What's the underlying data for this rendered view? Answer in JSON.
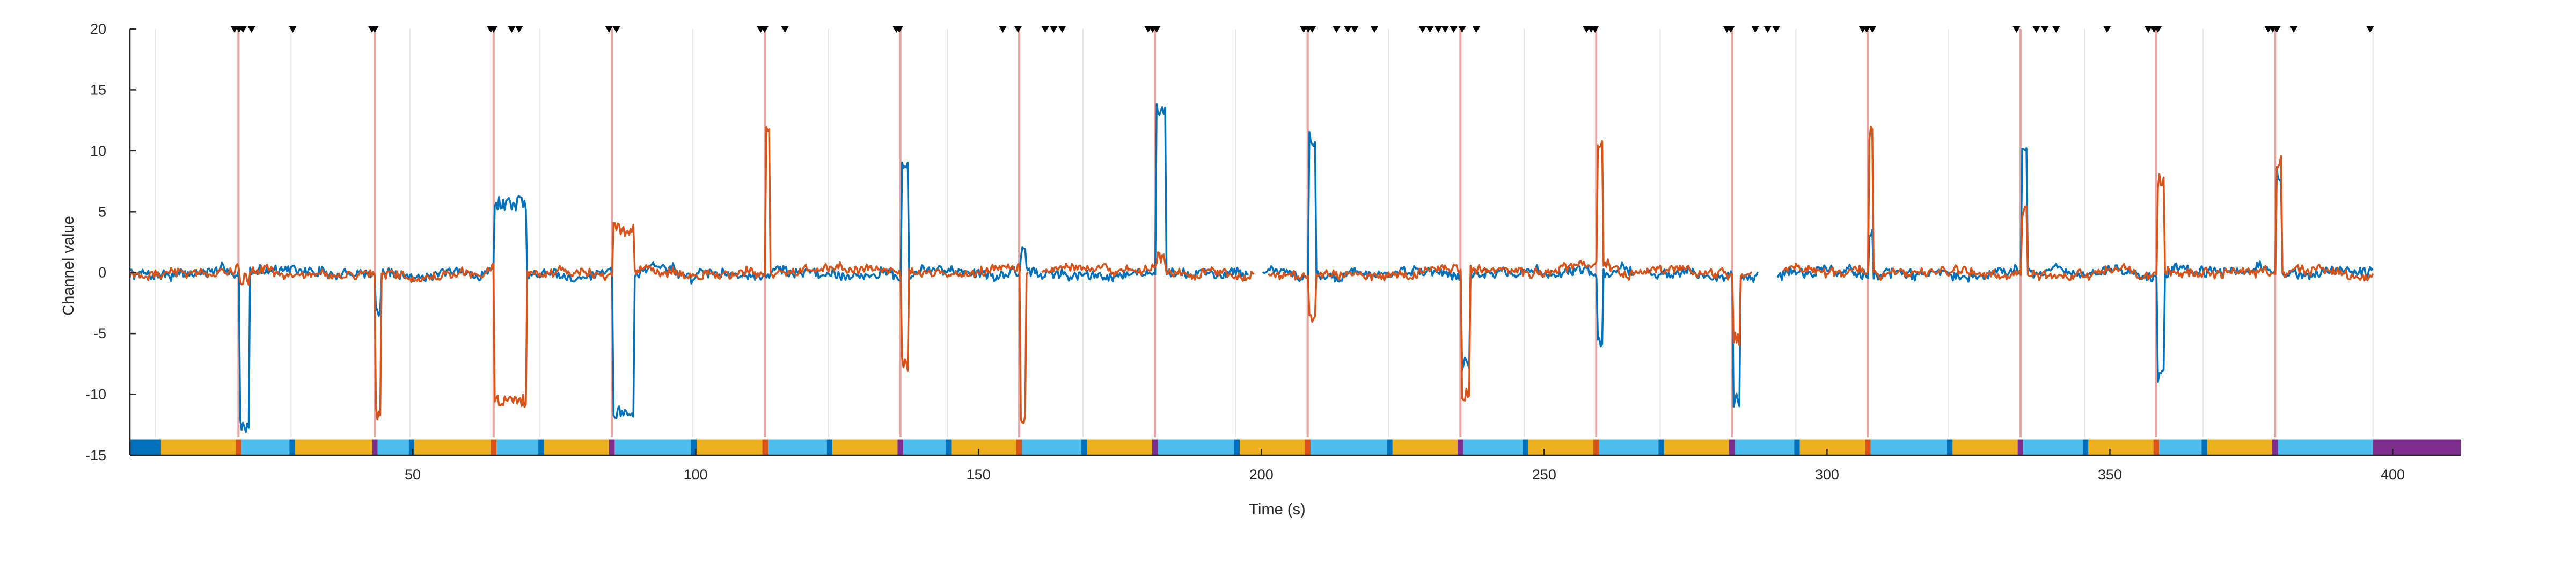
{
  "chart_data": {
    "type": "line",
    "title": "",
    "xlabel": "Time (s)",
    "ylabel": "Channel value",
    "xlim": [
      0,
      412
    ],
    "ylim": [
      -15,
      20
    ],
    "xticks": [
      50,
      100,
      150,
      200,
      250,
      300,
      350,
      400
    ],
    "yticks": [
      -15,
      -10,
      -5,
      0,
      5,
      10,
      15,
      20
    ],
    "grid": false,
    "legend": "none",
    "vertical_guides": [
      4.5,
      28.5,
      49.5,
      72.5,
      99.5,
      123.5,
      144.5,
      168.5,
      195.5,
      222.5,
      246.5,
      270.5,
      294.5,
      321.5,
      345.5,
      366.5,
      396.5
    ],
    "event_lines": [
      19.2,
      43.3,
      64.3,
      85.2,
      112.3,
      136.2,
      157.2,
      181.2,
      208.2,
      235.2,
      259.2,
      283.2,
      307.2,
      334.2,
      358.2,
      379.2
    ],
    "triangle_markers": [
      18.5,
      19.3,
      20.0,
      21.5,
      28.8,
      42.8,
      43.3,
      63.8,
      64.3,
      67.5,
      68.8,
      84.7,
      86.0,
      111.5,
      112.2,
      115.8,
      135.5,
      136.0,
      154.3,
      157.0,
      161.8,
      163.3,
      164.8,
      180.0,
      180.8,
      181.5,
      207.5,
      208.3,
      209.0,
      213.3,
      215.3,
      216.5,
      220.0,
      228.5,
      229.8,
      231.3,
      232.5,
      234.0,
      235.5,
      238.0,
      257.5,
      258.3,
      259.0,
      282.3,
      283.0,
      287.3,
      289.5,
      291.0,
      306.3,
      307.0,
      308.0,
      333.5,
      337.0,
      338.5,
      340.5,
      349.5,
      356.8,
      357.8,
      358.5,
      378.0,
      378.8,
      379.5,
      382.5,
      396.0
    ],
    "colors": {
      "series_blue": "#0072BD",
      "series_orange": "#D95319",
      "event_line": "#E8A4A0",
      "guide_line": "#E3E3E3",
      "phase_dark_blue": "#0072BD",
      "phase_yellow": "#EDB120",
      "phase_light_blue": "#4DBEEE",
      "phase_purple": "#7E2F8E",
      "phase_red": "#D95319",
      "axis": "#262626"
    },
    "phase_bar": [
      {
        "start": 0,
        "end": 5.5,
        "color": "phase_dark_blue"
      },
      {
        "start": 5.5,
        "end": 18.7,
        "color": "phase_yellow"
      },
      {
        "start": 18.7,
        "end": 19.7,
        "color": "phase_red"
      },
      {
        "start": 19.7,
        "end": 28.2,
        "color": "phase_light_blue"
      },
      {
        "start": 28.2,
        "end": 29.2,
        "color": "phase_dark_blue"
      },
      {
        "start": 29.2,
        "end": 42.8,
        "color": "phase_yellow"
      },
      {
        "start": 42.8,
        "end": 43.8,
        "color": "phase_purple"
      },
      {
        "start": 43.8,
        "end": 49.3,
        "color": "phase_light_blue"
      },
      {
        "start": 49.3,
        "end": 50.3,
        "color": "phase_dark_blue"
      },
      {
        "start": 50.3,
        "end": 63.8,
        "color": "phase_yellow"
      },
      {
        "start": 63.8,
        "end": 64.8,
        "color": "phase_red"
      },
      {
        "start": 64.8,
        "end": 72.2,
        "color": "phase_light_blue"
      },
      {
        "start": 72.2,
        "end": 73.2,
        "color": "phase_dark_blue"
      },
      {
        "start": 73.2,
        "end": 84.7,
        "color": "phase_yellow"
      },
      {
        "start": 84.7,
        "end": 85.7,
        "color": "phase_purple"
      },
      {
        "start": 85.7,
        "end": 99.2,
        "color": "phase_light_blue"
      },
      {
        "start": 99.2,
        "end": 100.2,
        "color": "phase_dark_blue"
      },
      {
        "start": 100.2,
        "end": 111.8,
        "color": "phase_yellow"
      },
      {
        "start": 111.8,
        "end": 112.8,
        "color": "phase_red"
      },
      {
        "start": 112.8,
        "end": 123.2,
        "color": "phase_light_blue"
      },
      {
        "start": 123.2,
        "end": 124.2,
        "color": "phase_dark_blue"
      },
      {
        "start": 124.2,
        "end": 135.7,
        "color": "phase_yellow"
      },
      {
        "start": 135.7,
        "end": 136.7,
        "color": "phase_purple"
      },
      {
        "start": 136.7,
        "end": 144.2,
        "color": "phase_light_blue"
      },
      {
        "start": 144.2,
        "end": 145.2,
        "color": "phase_dark_blue"
      },
      {
        "start": 145.2,
        "end": 156.7,
        "color": "phase_yellow"
      },
      {
        "start": 156.7,
        "end": 157.7,
        "color": "phase_red"
      },
      {
        "start": 157.7,
        "end": 168.2,
        "color": "phase_light_blue"
      },
      {
        "start": 168.2,
        "end": 169.2,
        "color": "phase_dark_blue"
      },
      {
        "start": 169.2,
        "end": 180.7,
        "color": "phase_yellow"
      },
      {
        "start": 180.7,
        "end": 181.7,
        "color": "phase_purple"
      },
      {
        "start": 181.7,
        "end": 195.2,
        "color": "phase_light_blue"
      },
      {
        "start": 195.2,
        "end": 196.2,
        "color": "phase_dark_blue"
      },
      {
        "start": 196.2,
        "end": 207.7,
        "color": "phase_yellow"
      },
      {
        "start": 207.7,
        "end": 208.7,
        "color": "phase_red"
      },
      {
        "start": 208.7,
        "end": 222.2,
        "color": "phase_light_blue"
      },
      {
        "start": 222.2,
        "end": 223.2,
        "color": "phase_dark_blue"
      },
      {
        "start": 223.2,
        "end": 234.7,
        "color": "phase_yellow"
      },
      {
        "start": 234.7,
        "end": 235.7,
        "color": "phase_purple"
      },
      {
        "start": 235.7,
        "end": 246.2,
        "color": "phase_light_blue"
      },
      {
        "start": 246.2,
        "end": 247.2,
        "color": "phase_dark_blue"
      },
      {
        "start": 247.2,
        "end": 258.7,
        "color": "phase_yellow"
      },
      {
        "start": 258.7,
        "end": 259.7,
        "color": "phase_red"
      },
      {
        "start": 259.7,
        "end": 270.2,
        "color": "phase_light_blue"
      },
      {
        "start": 270.2,
        "end": 271.2,
        "color": "phase_dark_blue"
      },
      {
        "start": 271.2,
        "end": 282.7,
        "color": "phase_yellow"
      },
      {
        "start": 282.7,
        "end": 283.7,
        "color": "phase_purple"
      },
      {
        "start": 283.7,
        "end": 294.2,
        "color": "phase_light_blue"
      },
      {
        "start": 294.2,
        "end": 295.2,
        "color": "phase_dark_blue"
      },
      {
        "start": 295.2,
        "end": 306.7,
        "color": "phase_yellow"
      },
      {
        "start": 306.7,
        "end": 307.7,
        "color": "phase_red"
      },
      {
        "start": 307.7,
        "end": 321.2,
        "color": "phase_light_blue"
      },
      {
        "start": 321.2,
        "end": 322.2,
        "color": "phase_dark_blue"
      },
      {
        "start": 322.2,
        "end": 333.7,
        "color": "phase_yellow"
      },
      {
        "start": 333.7,
        "end": 334.7,
        "color": "phase_purple"
      },
      {
        "start": 334.7,
        "end": 345.2,
        "color": "phase_light_blue"
      },
      {
        "start": 345.2,
        "end": 346.2,
        "color": "phase_dark_blue"
      },
      {
        "start": 346.2,
        "end": 357.7,
        "color": "phase_yellow"
      },
      {
        "start": 357.7,
        "end": 358.7,
        "color": "phase_red"
      },
      {
        "start": 358.7,
        "end": 366.2,
        "color": "phase_light_blue"
      },
      {
        "start": 366.2,
        "end": 367.2,
        "color": "phase_dark_blue"
      },
      {
        "start": 367.2,
        "end": 378.7,
        "color": "phase_yellow"
      },
      {
        "start": 378.7,
        "end": 379.7,
        "color": "phase_purple"
      },
      {
        "start": 379.7,
        "end": 396.5,
        "color": "phase_light_blue"
      },
      {
        "start": 396.5,
        "end": 412,
        "color": "phase_purple"
      }
    ],
    "series": [
      {
        "color": "series_blue",
        "events": [
          [
            19.5,
            -12.5,
            1.5
          ],
          [
            43.5,
            -3,
            0.8
          ],
          [
            64.5,
            5.7,
            5.5
          ],
          [
            85.5,
            -11.5,
            3.5
          ],
          [
            112.5,
            0,
            0.5
          ],
          [
            136.5,
            8.5,
            1
          ],
          [
            157.5,
            1.5,
            0.8
          ],
          [
            181.5,
            13.5,
            1.5
          ],
          [
            208.5,
            11,
            1.2
          ],
          [
            235.5,
            -7.5,
            1.3
          ],
          [
            259.5,
            -5.5,
            0.8
          ],
          [
            283.5,
            -10.5,
            1
          ],
          [
            307.5,
            3,
            0.5
          ],
          [
            334.5,
            10.5,
            0.8
          ],
          [
            358.5,
            -8.5,
            1.2
          ],
          [
            379.5,
            8,
            0.8
          ]
        ],
        "gaps": [
          [
            198,
            200
          ],
          [
            266,
            268
          ],
          [
            288,
            291
          ]
        ],
        "stride": 0.25,
        "noise": 0.35,
        "seed": 7
      },
      {
        "color": "series_orange",
        "events": [
          [
            19.5,
            -0.5,
            1.5
          ],
          [
            43.5,
            -11.5,
            0.8
          ],
          [
            64.5,
            -10.5,
            5.5
          ],
          [
            85.5,
            3.5,
            3.5
          ],
          [
            112.5,
            12,
            0.5
          ],
          [
            136.5,
            -7.5,
            1
          ],
          [
            157.5,
            -12,
            0.8
          ],
          [
            181.5,
            1.2,
            1.5
          ],
          [
            208.5,
            -3.5,
            1.2
          ],
          [
            235.5,
            -10,
            1.3
          ],
          [
            259.5,
            10.5,
            0.8
          ],
          [
            283.5,
            -5.5,
            1
          ],
          [
            307.5,
            11.5,
            0.5
          ],
          [
            334.5,
            5,
            0.8
          ],
          [
            358.5,
            7.5,
            1.2
          ],
          [
            379.5,
            9,
            0.8
          ]
        ],
        "gaps": [
          [
            159,
            161
          ],
          [
            199,
            201
          ],
          [
            287,
            292
          ]
        ],
        "stride": 0.25,
        "noise": 0.3,
        "seed": 19
      }
    ]
  }
}
